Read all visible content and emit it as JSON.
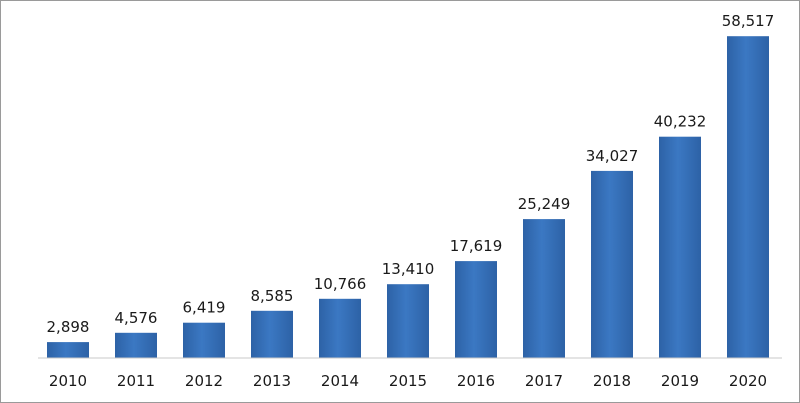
{
  "chart_data": {
    "type": "bar",
    "categories": [
      "2010",
      "2011",
      "2012",
      "2013",
      "2014",
      "2015",
      "2016",
      "2017",
      "2018",
      "2019",
      "2020"
    ],
    "values": [
      2898,
      4576,
      6419,
      8585,
      10766,
      13410,
      17619,
      25249,
      34027,
      40232,
      58517
    ],
    "data_labels": [
      "2,898",
      "4,576",
      "6,419",
      "8,585",
      "10,766",
      "13,410",
      "17,619",
      "25,249",
      "34,027",
      "40,232",
      "58,517"
    ],
    "title": "",
    "xlabel": "",
    "ylabel": "",
    "ylim": [
      0,
      60000
    ],
    "grid": false,
    "legend": "none",
    "bar_color": "#3b78c3",
    "bar_color_dark": "#2d62a6"
  }
}
